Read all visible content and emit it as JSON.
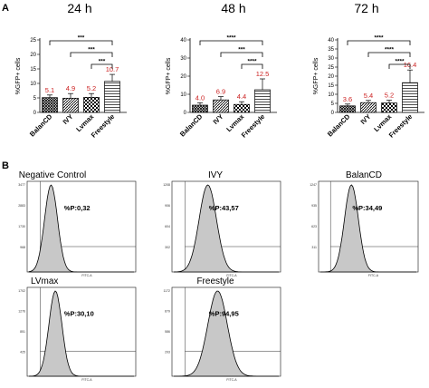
{
  "panels": {
    "a": "A",
    "b": "B"
  },
  "chart_data": [
    {
      "type": "bar",
      "title": "24 h",
      "ylabel": "%GFP+ cells",
      "categories": [
        "BalanCD",
        "IVY",
        "Lvmax",
        "Freestyle"
      ],
      "values": [
        5.1,
        4.9,
        5.2,
        10.7
      ],
      "errors": [
        0.9,
        1.6,
        1.3,
        2.4
      ],
      "data_labels": [
        "5.1",
        "4.9",
        "5.2",
        "10.7"
      ],
      "ylim": [
        0,
        25
      ],
      "yticks": [
        "0",
        "5",
        "10",
        "15",
        "20",
        "25"
      ],
      "significance": [
        {
          "from": 0,
          "to": 3,
          "label": "***"
        },
        {
          "from": 1,
          "to": 3,
          "label": "***"
        },
        {
          "from": 2,
          "to": 3,
          "label": "***"
        }
      ]
    },
    {
      "type": "bar",
      "title": "48 h",
      "ylabel": "%GFP+ cells",
      "categories": [
        "BalanCD",
        "IVY",
        "Lvmax",
        "Freestyle"
      ],
      "values": [
        4.0,
        6.9,
        4.4,
        12.5
      ],
      "errors": [
        1.3,
        1.8,
        1.5,
        6.0
      ],
      "data_labels": [
        "4.0",
        "6.9",
        "4.4",
        "12.5"
      ],
      "ylim": [
        0,
        40
      ],
      "yticks": [
        "0",
        "10",
        "20",
        "30",
        "40"
      ],
      "significance": [
        {
          "from": 0,
          "to": 3,
          "label": "****"
        },
        {
          "from": 1,
          "to": 3,
          "label": "***"
        },
        {
          "from": 2,
          "to": 3,
          "label": "****"
        }
      ]
    },
    {
      "type": "bar",
      "title": "72 h",
      "ylabel": "%GFP+ cells",
      "categories": [
        "BalanCD",
        "IVY",
        "Lvmax",
        "Freestyle"
      ],
      "values": [
        3.6,
        5.4,
        5.2,
        16.4
      ],
      "errors": [
        1.0,
        1.2,
        1.5,
        7.0
      ],
      "data_labels": [
        "3.6",
        "5.4",
        "5.2",
        "16.4"
      ],
      "ylim": [
        0,
        40
      ],
      "yticks": [
        "0",
        "5",
        "10",
        "15",
        "20",
        "25",
        "30",
        "35",
        "40"
      ],
      "significance": [
        {
          "from": 0,
          "to": 3,
          "label": "****"
        },
        {
          "from": 1,
          "to": 3,
          "label": "****"
        },
        {
          "from": 2,
          "to": 3,
          "label": "****"
        }
      ]
    }
  ],
  "histograms": [
    {
      "title": "Negative Control",
      "pct": "%P:0,32",
      "yticks": [
        "3477",
        "2883",
        "1730",
        "968"
      ],
      "xlabel": "FITC-A"
    },
    {
      "title": "IVY",
      "pct": "%P:43,57",
      "yticks": [
        "1208",
        "906",
        "604",
        "302"
      ],
      "xlabel": "FITC-A"
    },
    {
      "title": "BalanCD",
      "pct": "%P:34,49",
      "yticks": [
        "1247",
        "935",
        "623",
        "311"
      ],
      "xlabel": "FITC-A"
    },
    {
      "title": "LVmax",
      "pct": "%P:30,10",
      "yticks": [
        "1702",
        "1276",
        "851",
        "425"
      ],
      "xlabel": "FITC-A"
    },
    {
      "title": "Freestyle",
      "pct": "%P:94,95",
      "yticks": [
        "1172",
        "879",
        "586",
        "293"
      ],
      "xlabel": "FITC-A"
    }
  ],
  "colors": {
    "bar_fill": "#ffffff",
    "label_red": "#cc2222",
    "stroke": "#000000",
    "hist_fill": "#c8c8c8"
  }
}
